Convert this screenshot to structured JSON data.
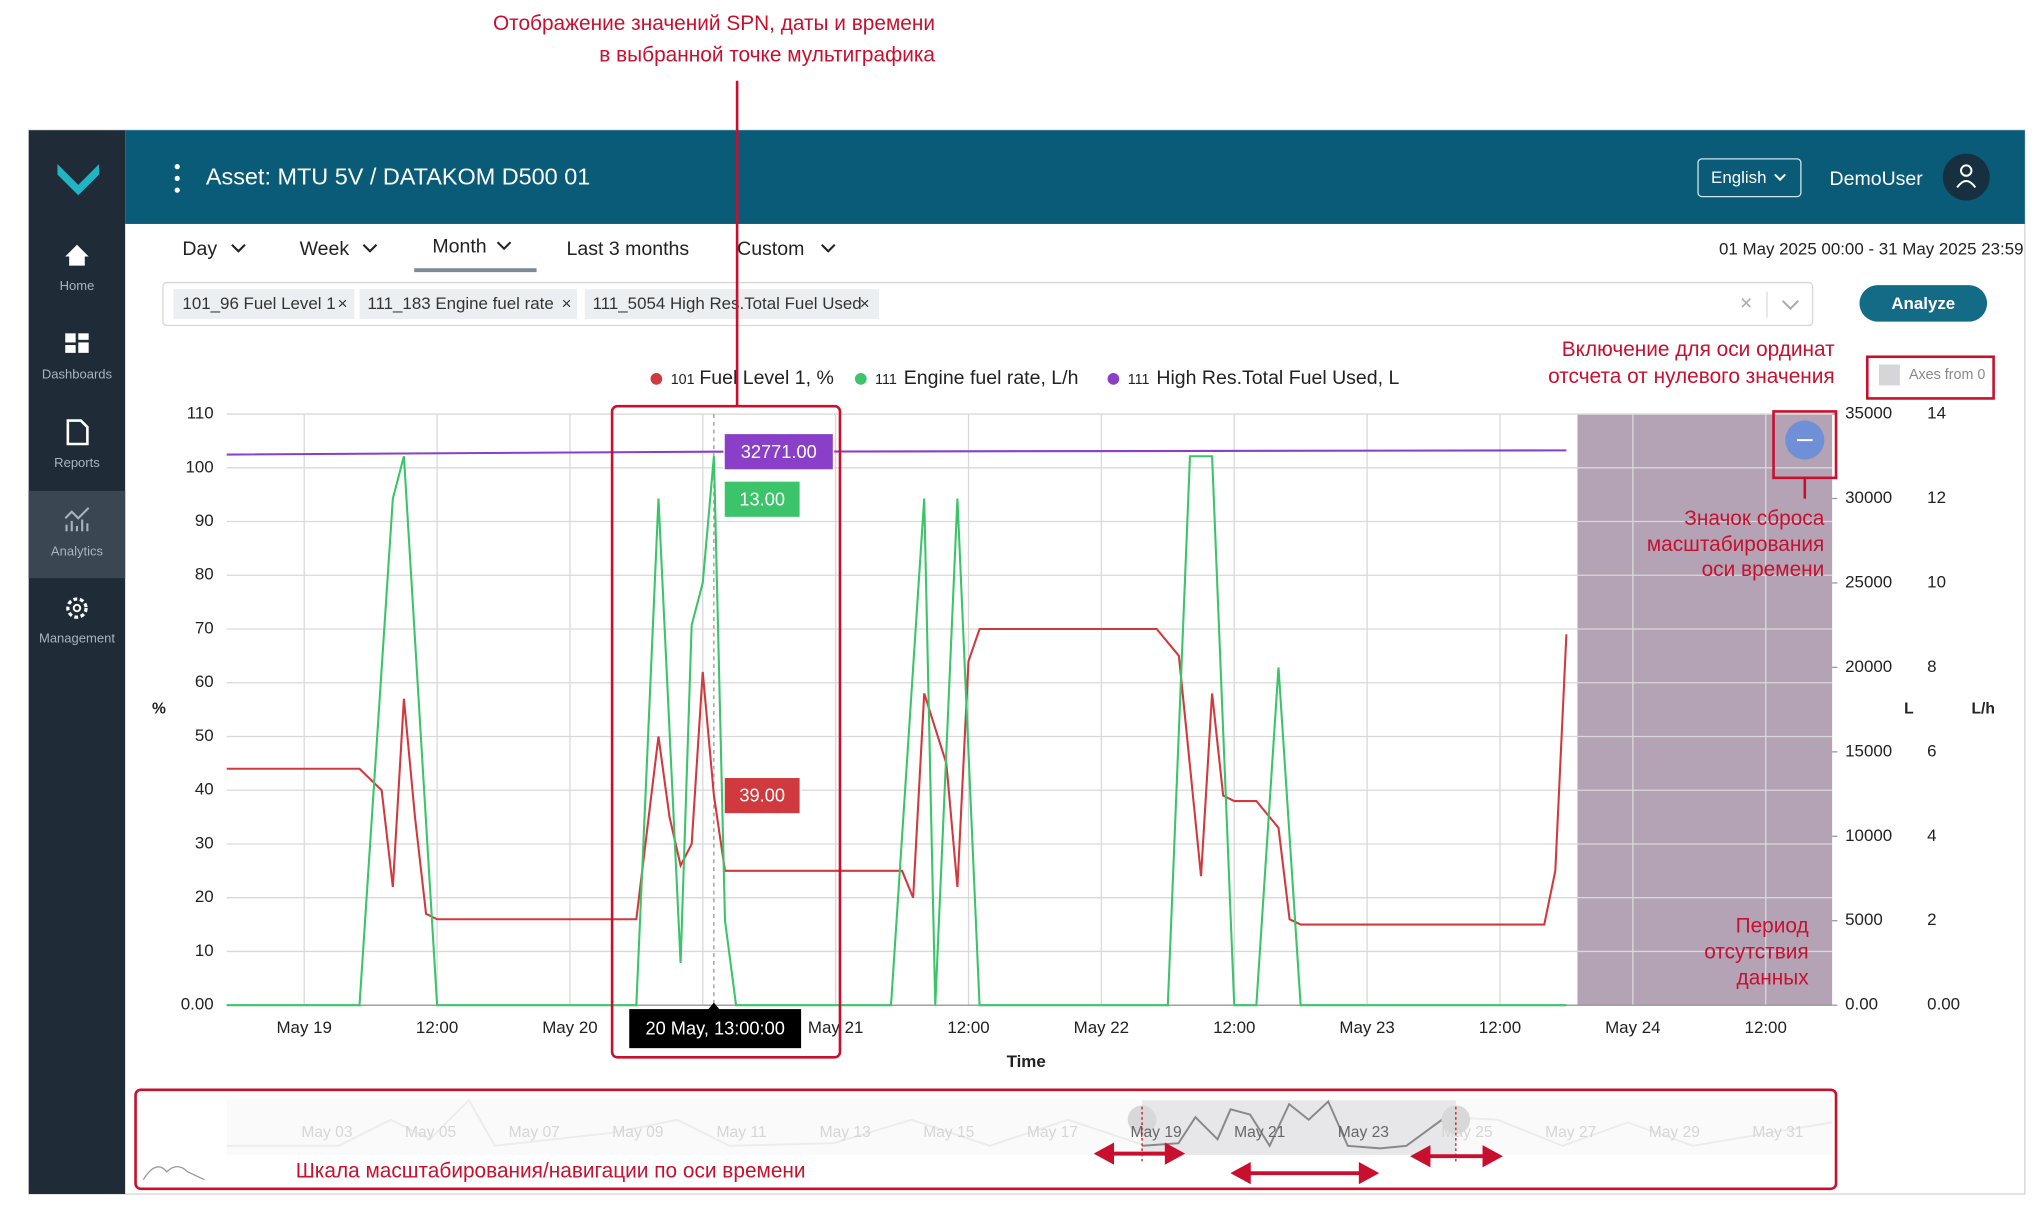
{
  "annotations": {
    "tooltip_note": [
      "Отображение значений SPN, даты и времени",
      "в выбранной точке мультиграфика"
    ],
    "axes_zero_note": [
      "Включение для оси ординат",
      "отсчета от нулевого значения"
    ],
    "reset_zoom_note": [
      "Значок сброса",
      "масштабирования",
      "оси времени"
    ],
    "no_data_note": [
      "Период",
      "отсутствия",
      "данных"
    ],
    "navigator_note": "Шкала масштабирования/навигации по оси времени"
  },
  "sidebar": [
    "Home",
    "Dashboards",
    "Reports",
    "Analytics",
    "Management"
  ],
  "header": {
    "title": "Asset: MTU 5V / DATAKOM D500 01",
    "language": "English",
    "user": "DemoUser"
  },
  "tabs": [
    "Day",
    "Week",
    "Month",
    "Last 3 months",
    "Custom"
  ],
  "date_range": "01 May 2025 00:00 - 31 May 2025 23:59",
  "filters": [
    "101_96 Fuel Level 1",
    "111_183 Engine fuel rate",
    "111_5054 High Res.Total Fuel Used"
  ],
  "analyze_button": "Analyze",
  "axes_from_zero": "Axes from 0",
  "chart_data": {
    "type": "line",
    "x_label": "Time",
    "y_label": "%",
    "y2_label": "L",
    "y3_label": "L/h",
    "xlim": [
      -7,
      138
    ],
    "xticks": [
      {
        "value": 0,
        "label": "May 19"
      },
      {
        "value": 12,
        "label": "12:00"
      },
      {
        "value": 24,
        "label": "May 20"
      },
      {
        "value": 36,
        "label": "12:00"
      },
      {
        "value": 48,
        "label": "May 21"
      },
      {
        "value": 60,
        "label": "12:00"
      },
      {
        "value": 72,
        "label": "May 22"
      },
      {
        "value": 84,
        "label": "12:00"
      },
      {
        "value": 96,
        "label": "May 23"
      },
      {
        "value": 108,
        "label": "12:00"
      },
      {
        "value": 120,
        "label": "May 24"
      },
      {
        "value": 132,
        "label": "12:00"
      }
    ],
    "ylim": [
      0,
      110
    ],
    "yticks": [
      {
        "value": 0,
        "label": "0.00"
      },
      10,
      20,
      30,
      40,
      50,
      60,
      70,
      80,
      90,
      100,
      110
    ],
    "y2lim": [
      0,
      35000
    ],
    "y2ticks": [
      {
        "value": 0,
        "label": "0.00"
      },
      5000,
      10000,
      15000,
      20000,
      25000,
      30000,
      35000
    ],
    "y3lim": [
      0,
      14
    ],
    "y3ticks": [
      {
        "value": 0,
        "label": "0.00"
      },
      2,
      4,
      6,
      8,
      10,
      12,
      14
    ],
    "grid": true,
    "no_data_from": 115,
    "series": [
      {
        "id": "101",
        "name": "Fuel Level 1, %",
        "color": "#d03a3f",
        "x": [
          -7,
          5,
          7,
          8,
          9,
          10,
          11,
          12,
          30,
          32,
          33,
          34,
          35,
          36,
          37,
          38,
          54,
          55,
          56,
          58,
          59,
          60,
          61,
          77,
          79,
          81,
          82,
          83,
          84,
          86,
          88,
          89,
          90,
          112,
          113,
          114
        ],
        "values": [
          44,
          44,
          40,
          22,
          57,
          35,
          17,
          16,
          16,
          50,
          35,
          26,
          30,
          62,
          39,
          25,
          25,
          20,
          58,
          45,
          22,
          64,
          70,
          70,
          65,
          24,
          58,
          39,
          38,
          38,
          33,
          16,
          15,
          15,
          25,
          69
        ]
      },
      {
        "id": "111",
        "name": "Engine fuel rate, L/h",
        "color": "#3cc46a",
        "axis": "y3",
        "x": [
          -7,
          5,
          8,
          9,
          12,
          30,
          32,
          34,
          35,
          36,
          37,
          38,
          39,
          53,
          56,
          57,
          59,
          61,
          78,
          80,
          82,
          84,
          86,
          88,
          90,
          114
        ],
        "values": [
          0,
          0,
          12,
          13,
          0,
          0,
          12,
          1,
          9,
          10,
          13,
          2,
          0,
          0,
          12,
          0,
          12,
          0,
          0,
          13,
          13,
          0,
          0,
          8,
          0,
          0
        ]
      },
      {
        "id": "111",
        "name": "High Res.Total Fuel Used, L",
        "color": "#8a3fc8",
        "axis": "y2",
        "x": [
          -7,
          37,
          114
        ],
        "values": [
          32600,
          32771,
          32850
        ]
      }
    ],
    "tooltip": {
      "x": 37,
      "label": "20 May, 13:00:00",
      "value_labels": [
        "39.00",
        "13.00",
        "32771.00"
      ]
    }
  },
  "navigator": {
    "labels": [
      "May 03",
      "May 05",
      "May 07",
      "May 09",
      "May 11",
      "May 13",
      "May 15",
      "May 17",
      "May 19",
      "May 21",
      "May 23",
      "May 25",
      "May 27",
      "May 29",
      "May 31"
    ]
  }
}
